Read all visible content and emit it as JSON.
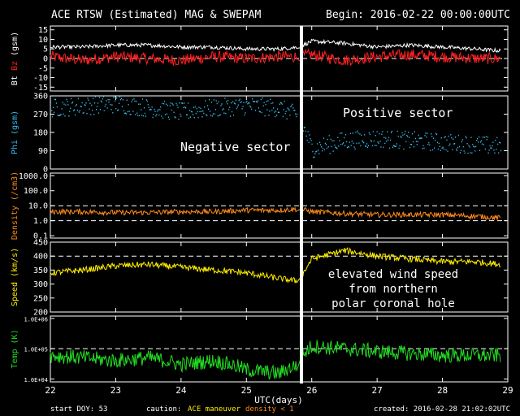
{
  "header": {
    "title": "ACE RTSW (Estimated) MAG & SWEPAM",
    "begin": "Begin: 2016-02-22 00:00:00UTC"
  },
  "footer": {
    "start_doy": "start DOY:  53",
    "caution_label": "caution:",
    "caution_maneuver": "ACE maneuver",
    "caution_density": "density < 1",
    "created": "created: 2016-02-28 21:02:02UTC"
  },
  "colors": {
    "background": "#000000",
    "bt": "#ffffff",
    "bz": "#ff2020",
    "phi": "#33bbee",
    "density": "#ff8c1a",
    "speed": "#ffee00",
    "temp": "#22dd22",
    "maneuver": "#ffee00",
    "density_flag": "#ff8c1a"
  },
  "chart_data": [
    {
      "type": "line",
      "panel": "mag",
      "ylabel_parts": [
        "Bt",
        "Bz",
        "(gsm)"
      ],
      "yticks": [
        15,
        10,
        5,
        0,
        -5,
        -10,
        -15
      ],
      "ylim": [
        -17,
        17
      ],
      "x": [
        22,
        22.5,
        23,
        23.5,
        24,
        24.5,
        25,
        25.5,
        25.8,
        26,
        26.5,
        27,
        27.5,
        28,
        28.5,
        28.9
      ],
      "series": [
        {
          "name": "Bt",
          "values": [
            6,
            6,
            7,
            7,
            6,
            6,
            5,
            5,
            6,
            9,
            8,
            6,
            7,
            6,
            5,
            4
          ]
        },
        {
          "name": "Bz",
          "values": [
            1,
            -1,
            1,
            0,
            -1,
            1,
            0,
            1,
            1,
            2,
            -1,
            1,
            2,
            1,
            0,
            0
          ]
        }
      ]
    },
    {
      "type": "scatter",
      "panel": "phi",
      "ylabel": "Phi (gsm)",
      "yticks": [
        360,
        270,
        180,
        90,
        0
      ],
      "ylim": [
        0,
        360
      ],
      "annotations": [
        "Positive sector",
        "Negative sector"
      ],
      "x": [
        22,
        22.5,
        23,
        23.5,
        24,
        24.5,
        25,
        25.5,
        25.8,
        26,
        26.5,
        27,
        27.5,
        28,
        28.5,
        28.9
      ],
      "values": [
        300,
        310,
        320,
        300,
        280,
        300,
        310,
        300,
        260,
        100,
        140,
        150,
        140,
        130,
        120,
        110
      ]
    },
    {
      "type": "line",
      "panel": "density",
      "ylabel": "Density (/cm3)",
      "yticks": [
        "1000.0",
        "100.0",
        "10.0",
        "1.0",
        "0.1"
      ],
      "ylog": true,
      "ylim": [
        0.07,
        1500
      ],
      "x": [
        22,
        22.5,
        23,
        23.5,
        24,
        24.5,
        25,
        25.5,
        25.8,
        26,
        26.5,
        27,
        27.5,
        28,
        28.5,
        28.9
      ],
      "values": [
        4,
        4,
        3.5,
        3.5,
        4,
        4,
        5,
        5,
        6,
        4,
        3,
        2.5,
        2.5,
        2.5,
        2,
        1.5
      ]
    },
    {
      "type": "line",
      "panel": "speed",
      "ylabel": "Speed (km/s)",
      "yticks": [
        450,
        400,
        350,
        300,
        250,
        200
      ],
      "ylim": [
        200,
        450
      ],
      "annotations": [
        "elevated wind speed",
        "from northern",
        "polar coronal hole"
      ],
      "x": [
        22,
        22.5,
        23,
        23.5,
        24,
        24.5,
        25,
        25.5,
        25.8,
        26,
        26.5,
        27,
        27.5,
        28,
        28.5,
        28.9
      ],
      "values": [
        340,
        350,
        365,
        370,
        360,
        350,
        340,
        320,
        310,
        390,
        420,
        400,
        390,
        380,
        380,
        370
      ]
    },
    {
      "type": "line",
      "panel": "temp",
      "ylabel": "Temp (K)",
      "yticks": [
        "1.0E+06",
        "1.0E+05",
        "1.0E+04"
      ],
      "ylog": true,
      "ylim": [
        8000,
        1200000
      ],
      "x": [
        22,
        22.5,
        23,
        23.5,
        24,
        24.5,
        25,
        25.5,
        25.8,
        26,
        26.5,
        27,
        27.5,
        28,
        28.5,
        28.9
      ],
      "values": [
        60000,
        50000,
        40000,
        50000,
        30000,
        40000,
        20000,
        15000,
        30000,
        120000,
        100000,
        80000,
        70000,
        60000,
        60000,
        60000
      ],
      "xlabel": "UTC(days)",
      "xticks": [
        22,
        23,
        24,
        25,
        26,
        27,
        28,
        29
      ],
      "xlim": [
        22,
        29
      ]
    }
  ]
}
